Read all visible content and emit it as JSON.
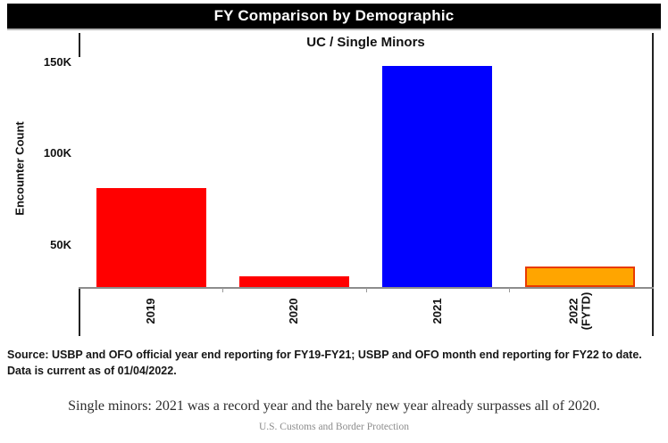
{
  "header": {
    "title": "FY Comparison by Demographic",
    "bg_color": "#000000",
    "fg_color": "#ffffff"
  },
  "chart_data": {
    "type": "bar",
    "title": "UC / Single Minors",
    "xlabel": "",
    "ylabel": "Encounter Count",
    "categories": [
      "2019",
      "2020",
      "2021",
      "2022\n(FYTD)"
    ],
    "values": [
      81000,
      33000,
      148000,
      38000
    ],
    "bar_colors": [
      "#ff0000",
      "#ff0000",
      "#0000ff",
      "#ffa500"
    ],
    "bar_border_colors": [
      null,
      null,
      null,
      "#e83a00"
    ],
    "y_ticks": [
      {
        "value": 50000,
        "label": "50K"
      },
      {
        "value": 100000,
        "label": "100K"
      },
      {
        "value": 150000,
        "label": "150K"
      }
    ],
    "ylim": [
      27000,
      166000
    ],
    "grid": false,
    "legend": null,
    "axis_color": "#8c8c8c"
  },
  "source_note": {
    "label": "Source:",
    "text": " USBP and OFO official year end reporting for FY19-FY21; USBP and OFO month end reporting for FY22 to date. Data is current as of 01/04/2022."
  },
  "caption": {
    "text": "Single minors: 2021 was a record year and the barely new year already surpasses all of 2020."
  },
  "attribution": {
    "text": "U.S. Customs and Border Protection"
  }
}
